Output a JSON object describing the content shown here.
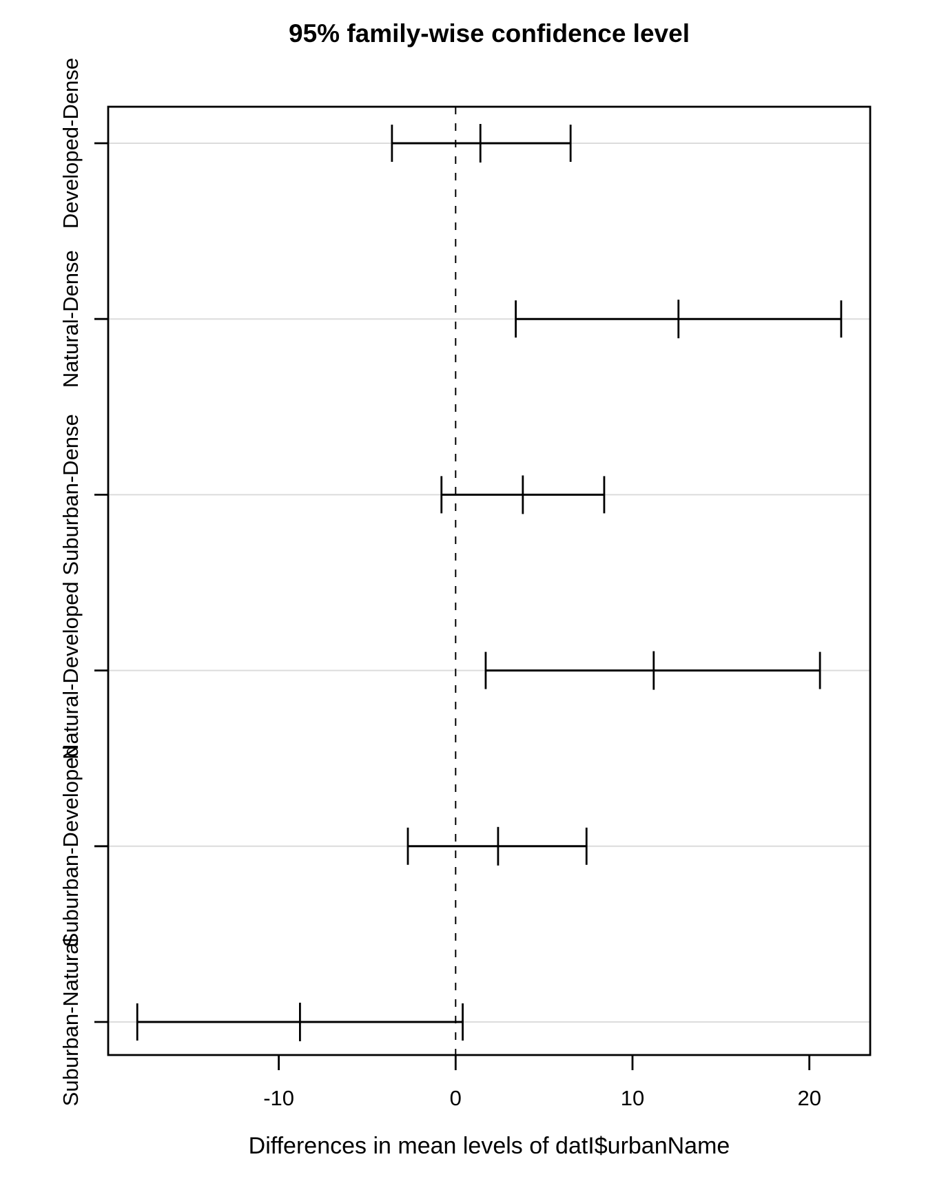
{
  "figure": {
    "background": "#ffffff",
    "foreground": "#000000",
    "grid_color": "#dcdcdc"
  },
  "chart_data": {
    "type": "scatter",
    "variant": "horizontal-confidence-intervals (R plot of TukeyHSD)",
    "title": "95% family-wise confidence level",
    "xlabel": "Differences in mean levels of datI$urbanName",
    "x_ticks": [
      -10,
      0,
      10,
      20
    ],
    "xlim": [
      -19.6,
      23.4
    ],
    "zero_reference_line": 0,
    "grid": "light gray horizontal line at each comparison row",
    "legend": "none",
    "comparisons": [
      {
        "label": "Developed-Dense",
        "lower": -3.6,
        "center": 1.4,
        "upper": 6.5
      },
      {
        "label": "Natural-Dense",
        "lower": 3.4,
        "center": 12.6,
        "upper": 21.8
      },
      {
        "label": "Suburban-Dense",
        "lower": -0.8,
        "center": 3.8,
        "upper": 8.4
      },
      {
        "label": "Natural-Developed",
        "lower": 1.7,
        "center": 11.2,
        "upper": 20.6
      },
      {
        "label": "Suburban-Developed",
        "lower": -2.7,
        "center": 2.4,
        "upper": 7.4
      },
      {
        "label": "Suburban-Natural",
        "lower": -18.0,
        "center": -8.8,
        "upper": 0.4
      }
    ]
  }
}
